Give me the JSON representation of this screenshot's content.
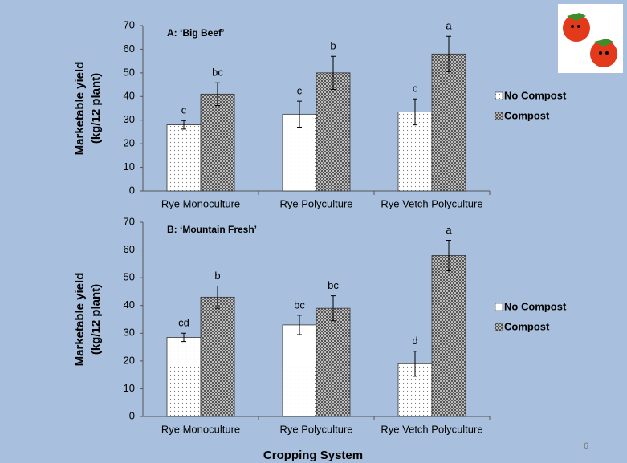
{
  "chart_data": [
    {
      "type": "bar",
      "title": "A: ‘Big Beef’",
      "ylabel": [
        "Marketable yield",
        "(kg/12 plant)"
      ],
      "categories": [
        "Rye Monoculture",
        "Rye Polyculture",
        "Rye Vetch Polyculture"
      ],
      "series": [
        {
          "name": "No Compost",
          "color": "#ffffff",
          "values": [
            28,
            32.5,
            33.5
          ],
          "errors": [
            1.8,
            5.5,
            5.5
          ],
          "labels": [
            "c",
            "c",
            "c"
          ]
        },
        {
          "name": "Compost",
          "color": "#8c8c8c",
          "values": [
            41,
            50,
            58
          ],
          "errors": [
            4.8,
            7,
            7.5
          ],
          "labels": [
            "bc",
            "b",
            "a"
          ]
        }
      ],
      "ylim": [
        0,
        70
      ],
      "yticks": [
        0,
        10,
        20,
        30,
        40,
        50,
        60,
        70
      ],
      "legend": "right"
    },
    {
      "type": "bar",
      "title": "B: ‘Mountain Fresh’",
      "ylabel": [
        "Marketable yield",
        "(kg/12 plant)"
      ],
      "xlabel": "Cropping System",
      "categories": [
        "Rye Monoculture",
        "Rye Polyculture",
        "Rye Vetch Polyculture"
      ],
      "series": [
        {
          "name": "No Compost",
          "color": "#ffffff",
          "values": [
            28.5,
            33,
            19
          ],
          "errors": [
            1.5,
            3.5,
            4.5
          ],
          "labels": [
            "cd",
            "bc",
            "d"
          ]
        },
        {
          "name": "Compost",
          "color": "#8c8c8c",
          "values": [
            43,
            39,
            58
          ],
          "errors": [
            4,
            4.5,
            5.5
          ],
          "labels": [
            "b",
            "bc",
            "a"
          ]
        }
      ],
      "ylim": [
        0,
        70
      ],
      "yticks": [
        0,
        10,
        20,
        30,
        40,
        50,
        60,
        70
      ],
      "legend": "right"
    }
  ],
  "page_number": 6
}
